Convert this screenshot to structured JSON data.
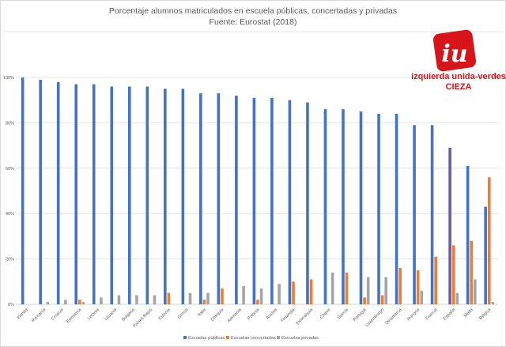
{
  "chart_data": {
    "type": "bar",
    "title": "Porcentaje alumnos matriculados en escuela públicas, concertadas y privadas",
    "subtitle": "Fuente: Eurostat (2018)",
    "xlabel": "",
    "ylabel": "",
    "ylim": [
      0,
      100
    ],
    "yticks": [
      "0%",
      "20%",
      "40%",
      "60%",
      "80%",
      "100%"
    ],
    "grid": true,
    "legend_position": "bottom",
    "categories": [
      "Irlanda",
      "Rumanía",
      "Croacia",
      "Eslovenia",
      "Letonia",
      "Lituania",
      "Bulgaria",
      "Países Bajos",
      "Estonia",
      "Grecia",
      "Italia",
      "Chequia",
      "Alemania",
      "Polonia",
      "Austria",
      "Finlandia",
      "Eslovaquia",
      "Chipre",
      "Suecia",
      "Portugal",
      "Luxemburgo",
      "Dinamarca",
      "Hungría",
      "Francia",
      "España",
      "Malta",
      "Bélgica"
    ],
    "series": [
      {
        "name": "Escuelas públicas",
        "color": "#4472c4",
        "values": [
          100,
          99,
          98,
          97,
          97,
          96,
          96,
          96,
          95,
          95,
          93,
          93,
          92,
          91,
          91,
          90,
          89,
          86,
          86,
          85,
          84,
          84,
          79,
          79,
          69,
          61,
          43
        ]
      },
      {
        "name": "Escuelas concertadas",
        "color": "#ed7d31",
        "values": [
          0,
          0,
          0,
          2,
          0,
          0,
          0,
          0,
          5,
          0,
          2,
          7,
          0,
          2,
          0,
          10,
          11,
          0,
          14,
          3,
          4,
          16,
          15,
          21,
          26,
          28,
          56
        ]
      },
      {
        "name": "Escuelas privadas",
        "color": "#a5a5a5",
        "values": [
          0,
          1,
          2,
          1,
          3,
          4,
          4,
          4,
          0,
          5,
          5,
          0,
          8,
          7,
          9,
          0,
          0,
          14,
          0,
          12,
          12,
          0,
          6,
          0,
          5,
          11,
          1
        ]
      }
    ],
    "highlight": {
      "category": "España",
      "series": "Escuelas públicas",
      "color": "#6b5ca5"
    }
  },
  "logo": {
    "line1": "izquierda unida-verdes",
    "line2": "CIEZA",
    "mark": "iu",
    "color": "#d7141a"
  }
}
